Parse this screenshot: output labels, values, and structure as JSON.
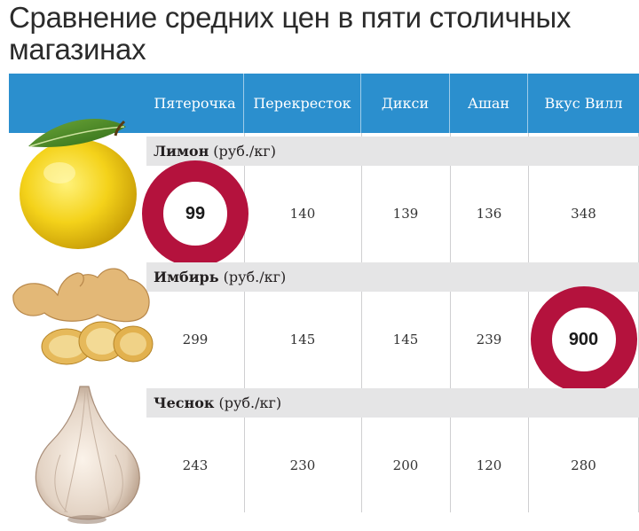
{
  "title": "Сравнение средних цен в пяти столичных магазинах",
  "chart_data": {
    "type": "table",
    "columns": [
      "Пятерочка",
      "Перекресток",
      "Дикси",
      "Ашан",
      "Вкус Вилл"
    ],
    "rows": [
      {
        "name": "Лимон",
        "unit": "(руб./кг)",
        "values": [
          "99",
          "140",
          "139",
          "136",
          "348"
        ],
        "highlight_index": 0
      },
      {
        "name": "Имбирь",
        "unit": "(руб./кг)",
        "values": [
          "299",
          "145",
          "145",
          "239",
          "900"
        ],
        "highlight_index": 4
      },
      {
        "name": "Чеснок",
        "unit": "(руб./кг)",
        "values": [
          "243",
          "230",
          "200",
          "120",
          "280"
        ],
        "highlight_index": null
      }
    ]
  },
  "colors": {
    "header": "#2b8fce",
    "band": "#e5e5e6",
    "highlight_ring": "#b4123d"
  },
  "icons": [
    "lemon-icon",
    "ginger-icon",
    "garlic-icon"
  ]
}
